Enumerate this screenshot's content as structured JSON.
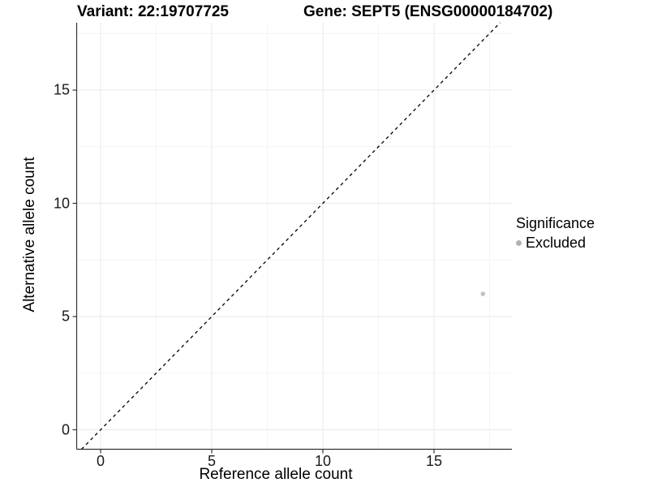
{
  "header": {
    "variant_title": "Variant: 22:19707725",
    "gene_title": "Gene: SEPT5 (ENSG00000184702)"
  },
  "axes": {
    "x_label": "Reference allele count",
    "y_label": "Alternative allele count"
  },
  "legend": {
    "title": "Significance",
    "items": [
      {
        "label": "Excluded",
        "color": "#b3b3b3"
      }
    ]
  },
  "chart_data": {
    "type": "scatter",
    "title": "Variant: 22:19707725    Gene: SEPT5 (ENSG00000184702)",
    "xlabel": "Reference allele count",
    "ylabel": "Alternative allele count",
    "x_ticks": [
      0,
      5,
      10,
      15
    ],
    "y_ticks": [
      0,
      5,
      10,
      15
    ],
    "x_minor_ticks": [
      2.5,
      7.5,
      12.5,
      17.5
    ],
    "y_minor_ticks": [
      2.5,
      7.5,
      12.5,
      17.5
    ],
    "xlim": [
      -1.05,
      18.5
    ],
    "ylim": [
      -0.85,
      18.0
    ],
    "grid": "major and minor gridlines, very light gray, white background",
    "legend_position": "right-outside",
    "axis_line_color": "#333333",
    "grid_major_color": "#e9e9e9",
    "grid_minor_color": "#f4f4f4",
    "reference_line": {
      "kind": "identity y=x",
      "style": "dashed",
      "color": "#000000"
    },
    "series": [
      {
        "name": "Excluded",
        "color": "#c2c2c2",
        "points": [
          {
            "x": 17.2,
            "y": 6.0
          }
        ]
      }
    ]
  }
}
